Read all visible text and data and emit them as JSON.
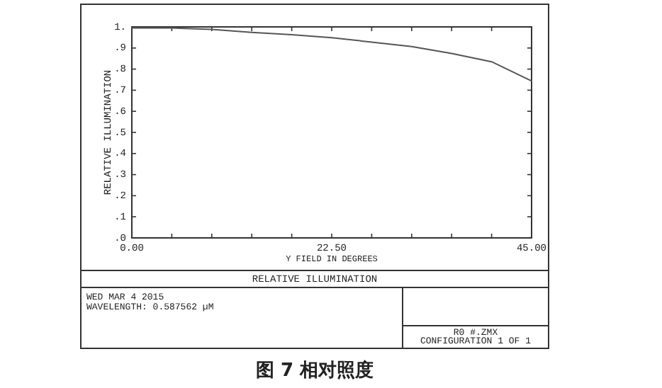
{
  "chart_data": {
    "type": "line",
    "title": "RELATIVE ILLUMINATION",
    "xlabel": "Y FIELD IN DEGREES",
    "ylabel": "RELATIVE ILLUMINATION",
    "x": [
      0,
      4.5,
      9,
      13.5,
      18,
      22.5,
      27,
      31.5,
      36,
      40.5,
      45
    ],
    "series": [
      {
        "color": "#555555",
        "values": [
          0.995,
          0.995,
          0.988,
          0.974,
          0.963,
          0.949,
          0.928,
          0.907,
          0.874,
          0.835,
          0.744
        ]
      }
    ],
    "xlim": [
      0,
      45
    ],
    "ylim": [
      0,
      1
    ],
    "xticks": [
      {
        "value": 0,
        "label": "0.00"
      },
      {
        "value": 4.5,
        "label": null
      },
      {
        "value": 9,
        "label": null
      },
      {
        "value": 13.5,
        "label": null
      },
      {
        "value": 18,
        "label": null
      },
      {
        "value": 22.5,
        "label": "22.50"
      },
      {
        "value": 27,
        "label": null
      },
      {
        "value": 31.5,
        "label": null
      },
      {
        "value": 36,
        "label": null
      },
      {
        "value": 40.5,
        "label": null
      },
      {
        "value": 45,
        "label": "45.00"
      }
    ],
    "yticks": [
      {
        "value": 0,
        "label": ".0"
      },
      {
        "value": 0.1,
        "label": ".1"
      },
      {
        "value": 0.2,
        "label": ".2"
      },
      {
        "value": 0.3,
        "label": ".3"
      },
      {
        "value": 0.4,
        "label": ".4"
      },
      {
        "value": 0.5,
        "label": ".5"
      },
      {
        "value": 0.6,
        "label": ".6"
      },
      {
        "value": 0.7,
        "label": ".7"
      },
      {
        "value": 0.8,
        "label": ".8"
      },
      {
        "value": 0.9,
        "label": ".9"
      },
      {
        "value": 1,
        "label": "1."
      }
    ],
    "annotations": [
      "WED MAR 4 2015",
      "WAVELENGTH: 0.587562 µM",
      "R0 #.ZMX",
      "CONFIGURATION 1 OF 1",
      "图 7  相对照度"
    ]
  }
}
